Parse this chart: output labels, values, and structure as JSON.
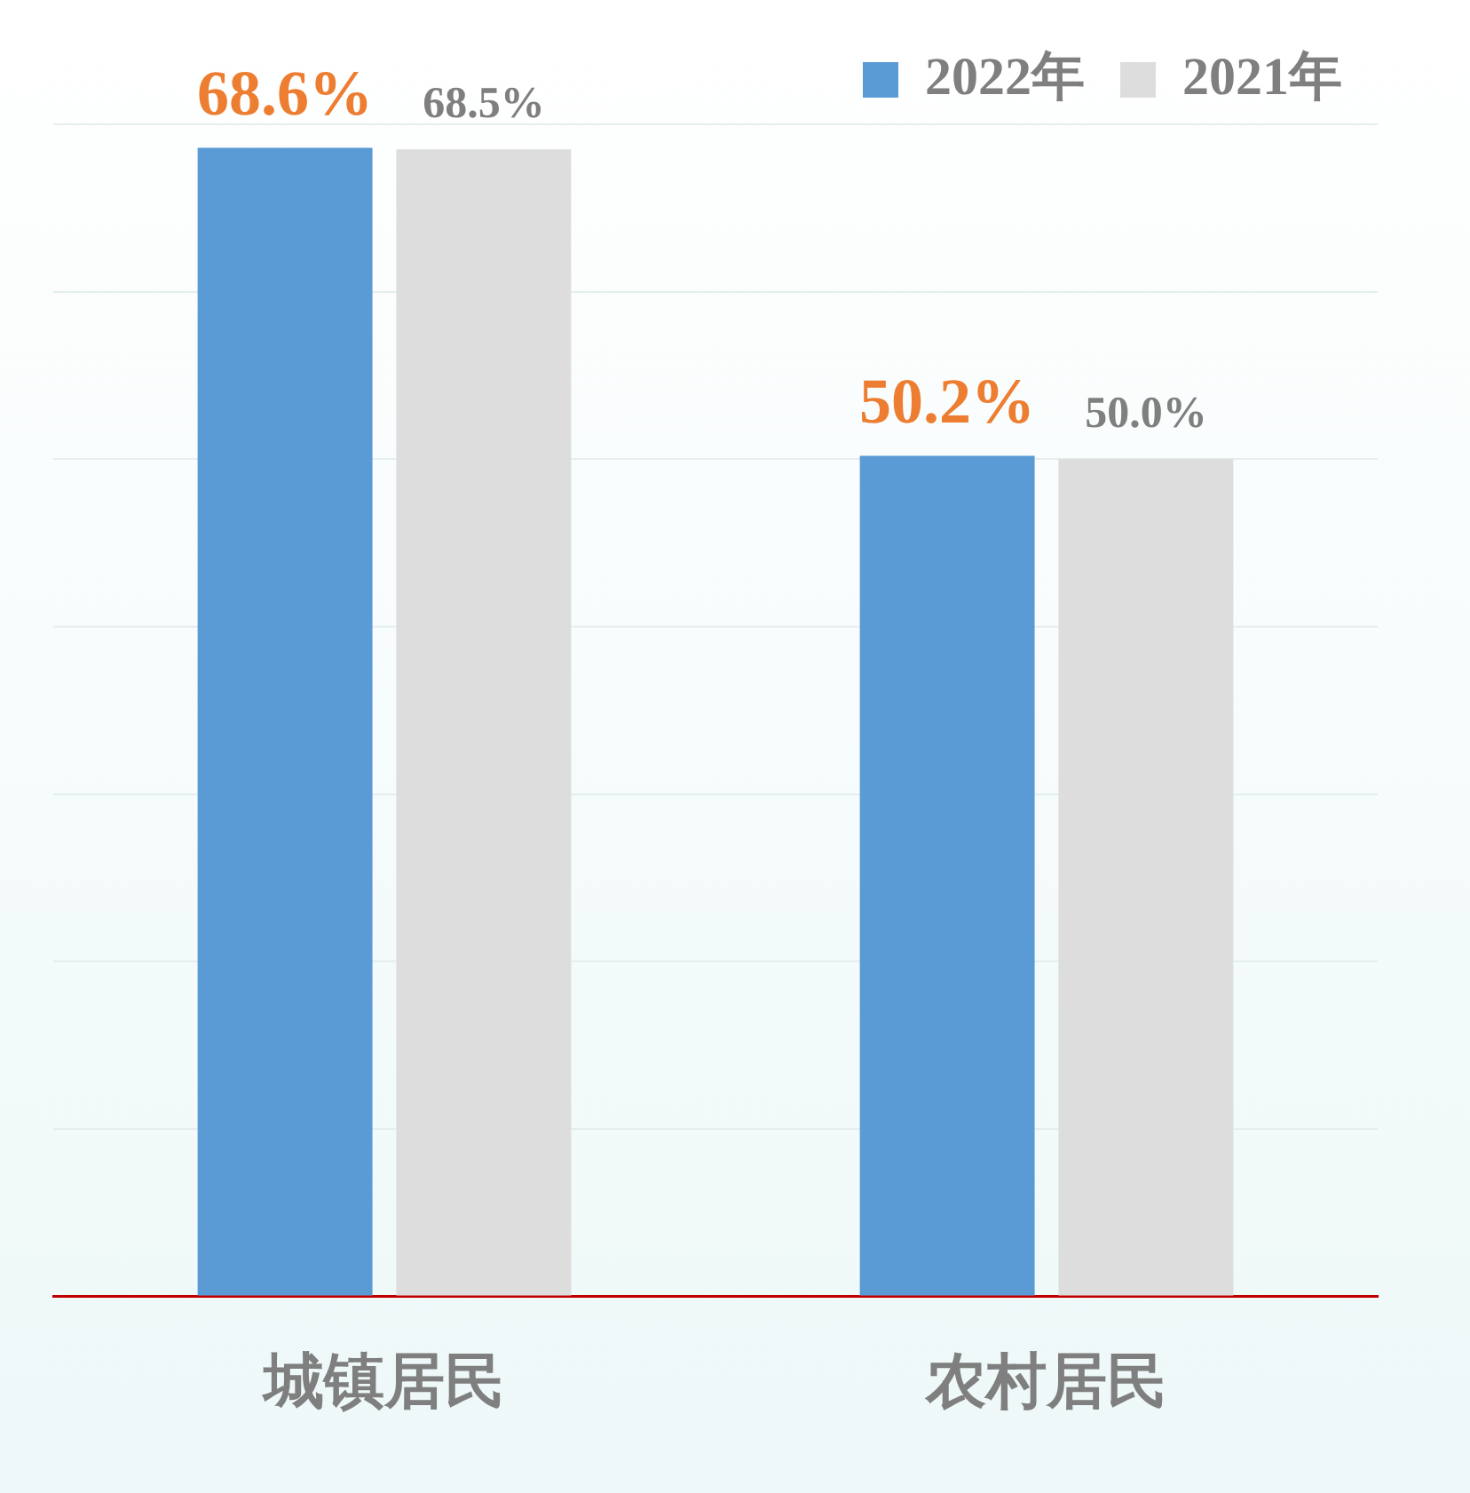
{
  "chart_data": {
    "type": "bar",
    "categories": [
      "城镇居民",
      "农村居民"
    ],
    "series": [
      {
        "name": "2022年",
        "color": "#5b9bd5",
        "values": [
          68.6,
          50.2
        ],
        "value_labels": [
          "68.6%",
          "50.2%"
        ]
      },
      {
        "name": "2021年",
        "color": "#dddddd",
        "values": [
          68.5,
          50.0
        ],
        "value_labels": [
          "68.5%",
          "50.0%"
        ]
      }
    ],
    "tick_labels": "x",
    "grid": "y",
    "legend": "top right"
  }
}
